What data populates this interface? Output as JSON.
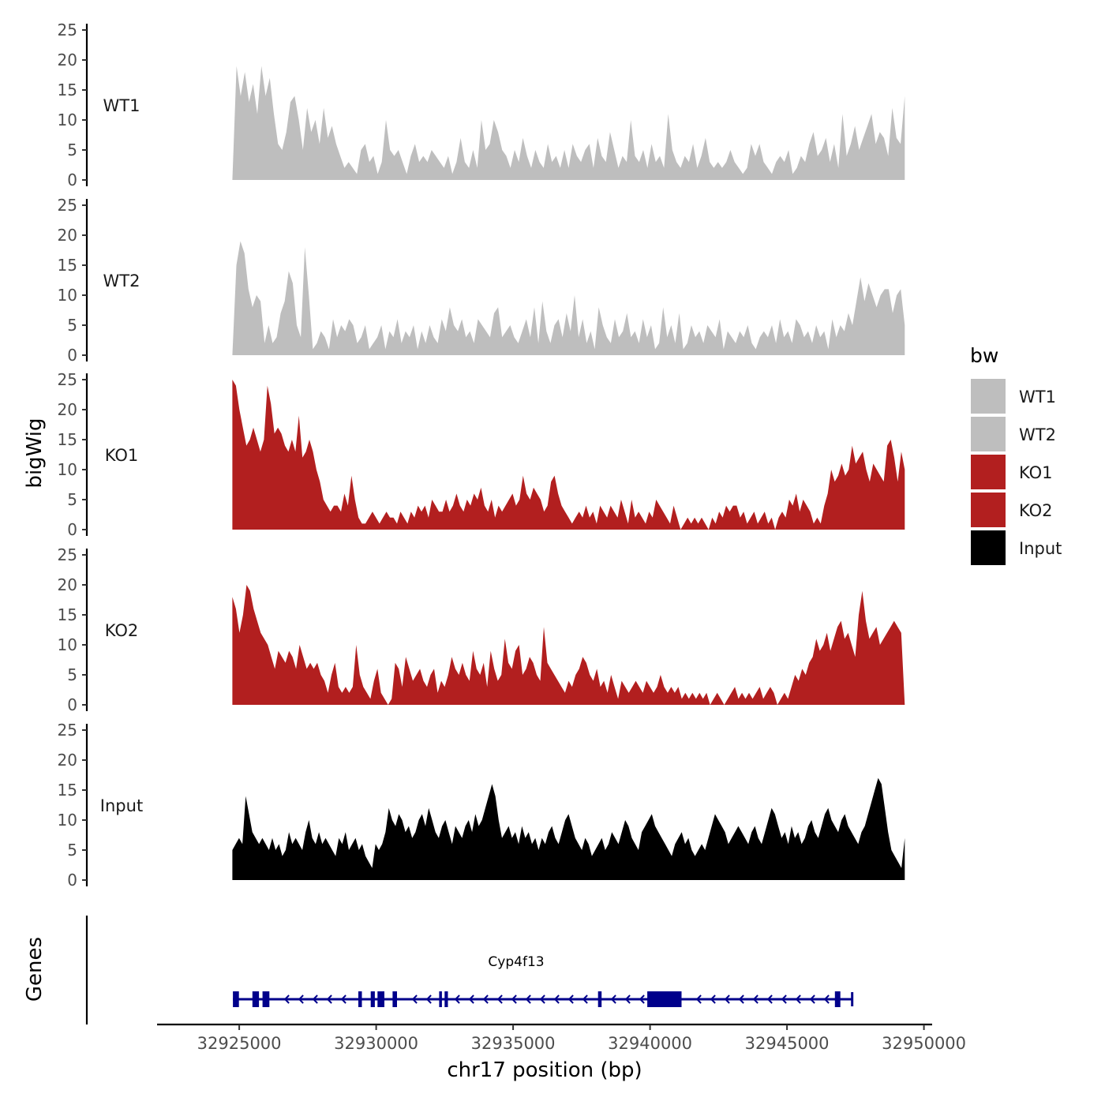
{
  "chart_data": {
    "type": "area",
    "ylabel": "bigWig",
    "ylim": [
      0,
      25
    ],
    "yticks": [
      "0",
      "5",
      "10",
      "15",
      "20",
      "25"
    ],
    "xlabel": "chr17 position (bp)",
    "xlim": [
      32922000,
      32950300
    ],
    "xticks": [
      {
        "value": 32925000,
        "label": "32925000"
      },
      {
        "value": 32930000,
        "label": "32930000"
      },
      {
        "value": 32935000,
        "label": "32935000"
      },
      {
        "value": 32940000,
        "label": "32940000"
      },
      {
        "value": 32945000,
        "label": "32945000"
      },
      {
        "value": 32950000,
        "label": "32950000"
      }
    ],
    "x_start": 32924750,
    "x_end": 32949300,
    "legend": {
      "title": "bw",
      "position": "right",
      "entries": [
        {
          "label": "WT1",
          "color": "#bebebe"
        },
        {
          "label": "WT2",
          "color": "#bebebe"
        },
        {
          "label": "KO1",
          "color": "#b21f1f"
        },
        {
          "label": "KO2",
          "color": "#b21f1f"
        },
        {
          "label": "Input",
          "color": "#000000"
        }
      ]
    },
    "series": [
      {
        "name": "WT1",
        "color": "#bebebe",
        "values": [
          0,
          19,
          14,
          18,
          13,
          16,
          11,
          19,
          14,
          17,
          11,
          6,
          5,
          8,
          13,
          14,
          10,
          5,
          12,
          8,
          10,
          6,
          12,
          7,
          9,
          6,
          4,
          2,
          3,
          2,
          1,
          5,
          6,
          3,
          4,
          1,
          3,
          10,
          5,
          4,
          5,
          3,
          1,
          4,
          6,
          3,
          4,
          3,
          5,
          4,
          3,
          2,
          4,
          1,
          3,
          7,
          3,
          2,
          5,
          2,
          10,
          5,
          6,
          10,
          8,
          5,
          4,
          2,
          5,
          3,
          7,
          4,
          2,
          5,
          3,
          2,
          6,
          3,
          4,
          2,
          5,
          2,
          6,
          4,
          3,
          5,
          6,
          2,
          7,
          4,
          3,
          8,
          5,
          2,
          4,
          3,
          10,
          4,
          3,
          5,
          2,
          6,
          3,
          4,
          2,
          11,
          5,
          3,
          2,
          4,
          3,
          6,
          2,
          4,
          7,
          3,
          2,
          3,
          2,
          3,
          5,
          3,
          2,
          1,
          2,
          6,
          4,
          6,
          3,
          2,
          1,
          3,
          4,
          3,
          5,
          1,
          2,
          4,
          3,
          6,
          8,
          4,
          5,
          7,
          3,
          6,
          2,
          11,
          4,
          6,
          9,
          5,
          7,
          9,
          11,
          6,
          8,
          7,
          4,
          12,
          7,
          6,
          14
        ]
      },
      {
        "name": "WT2",
        "color": "#bebebe",
        "values": [
          0,
          15,
          19,
          17,
          11,
          8,
          10,
          9,
          2,
          5,
          2,
          3,
          7,
          9,
          14,
          12,
          5,
          3,
          18,
          10,
          1,
          2,
          4,
          3,
          1,
          6,
          3,
          5,
          4,
          6,
          5,
          2,
          3,
          5,
          1,
          2,
          3,
          5,
          1,
          4,
          3,
          6,
          2,
          4,
          3,
          5,
          1,
          4,
          2,
          5,
          3,
          2,
          6,
          4,
          8,
          5,
          4,
          6,
          3,
          4,
          2,
          6,
          5,
          4,
          3,
          7,
          8,
          3,
          4,
          5,
          3,
          2,
          4,
          6,
          3,
          8,
          2,
          9,
          4,
          2,
          5,
          6,
          3,
          7,
          4,
          10,
          3,
          6,
          2,
          4,
          1,
          8,
          5,
          3,
          2,
          6,
          3,
          4,
          7,
          3,
          4,
          2,
          6,
          3,
          5,
          1,
          2,
          8,
          3,
          5,
          2,
          7,
          1,
          2,
          5,
          3,
          4,
          2,
          5,
          4,
          3,
          6,
          1,
          4,
          3,
          2,
          4,
          3,
          5,
          2,
          1,
          3,
          4,
          3,
          5,
          2,
          6,
          3,
          4,
          2,
          6,
          5,
          3,
          4,
          2,
          5,
          3,
          4,
          1,
          6,
          3,
          5,
          4,
          7,
          5,
          9,
          13,
          9,
          12,
          10,
          8,
          10,
          11,
          11,
          7,
          10,
          11,
          5
        ]
      },
      {
        "name": "KO1",
        "color": "#b21f1f",
        "values": [
          25,
          24,
          20,
          17,
          14,
          15,
          17,
          15,
          13,
          15,
          24,
          21,
          16,
          17,
          16,
          14,
          13,
          15,
          13,
          19,
          12,
          13,
          15,
          13,
          10,
          8,
          5,
          4,
          3,
          4,
          4,
          3,
          6,
          4,
          9,
          5,
          2,
          1,
          1,
          2,
          3,
          2,
          1,
          2,
          3,
          2,
          2,
          1,
          3,
          2,
          1,
          3,
          2,
          4,
          3,
          4,
          2,
          5,
          4,
          3,
          3,
          5,
          3,
          4,
          6,
          4,
          3,
          5,
          4,
          6,
          5,
          7,
          4,
          3,
          5,
          2,
          4,
          3,
          4,
          5,
          6,
          4,
          5,
          9,
          6,
          5,
          7,
          6,
          5,
          3,
          4,
          8,
          9,
          6,
          4,
          3,
          2,
          1,
          2,
          3,
          2,
          4,
          2,
          3,
          1,
          4,
          3,
          2,
          4,
          3,
          2,
          5,
          3,
          1,
          5,
          2,
          3,
          2,
          1,
          3,
          2,
          5,
          4,
          3,
          2,
          1,
          4,
          2,
          0,
          1,
          2,
          1,
          2,
          1,
          2,
          1,
          0,
          2,
          1,
          3,
          2,
          4,
          3,
          4,
          4,
          2,
          3,
          1,
          2,
          3,
          1,
          2,
          3,
          1,
          2,
          0,
          2,
          3,
          2,
          5,
          4,
          6,
          3,
          5,
          4,
          3,
          1,
          2,
          1,
          4,
          6,
          10,
          8,
          9,
          11,
          9,
          10,
          14,
          11,
          12,
          13,
          10,
          8,
          11,
          10,
          9,
          8,
          14,
          15,
          12,
          8,
          13,
          10
        ]
      },
      {
        "name": "KO2",
        "color": "#b21f1f",
        "values": [
          18,
          16,
          12,
          15,
          20,
          19,
          16,
          14,
          12,
          11,
          10,
          8,
          6,
          9,
          8,
          7,
          9,
          8,
          6,
          10,
          8,
          6,
          7,
          6,
          7,
          5,
          4,
          2,
          5,
          7,
          3,
          2,
          3,
          2,
          3,
          10,
          5,
          3,
          2,
          1,
          4,
          6,
          2,
          1,
          0,
          1,
          7,
          6,
          3,
          8,
          6,
          4,
          5,
          6,
          4,
          3,
          5,
          6,
          2,
          4,
          3,
          5,
          8,
          6,
          5,
          7,
          5,
          4,
          9,
          6,
          5,
          7,
          3,
          9,
          6,
          4,
          5,
          11,
          7,
          6,
          9,
          10,
          5,
          6,
          8,
          7,
          5,
          4,
          13,
          7,
          6,
          5,
          4,
          3,
          2,
          4,
          3,
          5,
          6,
          8,
          7,
          5,
          4,
          6,
          3,
          4,
          2,
          5,
          3,
          1,
          4,
          3,
          2,
          3,
          4,
          3,
          2,
          4,
          3,
          2,
          3,
          5,
          3,
          2,
          3,
          2,
          3,
          1,
          2,
          1,
          2,
          1,
          2,
          1,
          2,
          0,
          1,
          2,
          1,
          0,
          1,
          2,
          3,
          1,
          2,
          1,
          2,
          1,
          2,
          3,
          1,
          2,
          3,
          2,
          0,
          1,
          2,
          1,
          3,
          5,
          4,
          6,
          5,
          7,
          8,
          11,
          9,
          10,
          12,
          9,
          11,
          13,
          14,
          11,
          12,
          10,
          8,
          15,
          19,
          14,
          11,
          12,
          13,
          10,
          11,
          12,
          13,
          14,
          13,
          12,
          0
        ]
      },
      {
        "name": "Input",
        "color": "#000000",
        "values": [
          5,
          6,
          7,
          6,
          14,
          11,
          8,
          7,
          6,
          7,
          6,
          5,
          7,
          5,
          6,
          4,
          5,
          8,
          6,
          7,
          6,
          5,
          8,
          10,
          7,
          6,
          8,
          6,
          7,
          6,
          5,
          4,
          7,
          6,
          8,
          5,
          6,
          7,
          5,
          6,
          4,
          3,
          2,
          6,
          5,
          6,
          8,
          12,
          10,
          9,
          11,
          10,
          8,
          9,
          7,
          8,
          10,
          11,
          9,
          12,
          10,
          8,
          7,
          9,
          10,
          8,
          6,
          9,
          8,
          7,
          9,
          10,
          8,
          11,
          9,
          10,
          12,
          14,
          16,
          14,
          10,
          7,
          8,
          9,
          7,
          8,
          6,
          9,
          7,
          8,
          6,
          7,
          5,
          7,
          6,
          8,
          9,
          7,
          6,
          8,
          10,
          11,
          9,
          7,
          6,
          5,
          7,
          6,
          4,
          5,
          6,
          7,
          5,
          6,
          8,
          7,
          6,
          8,
          10,
          9,
          7,
          6,
          5,
          8,
          9,
          10,
          11,
          9,
          8,
          7,
          6,
          5,
          4,
          6,
          7,
          8,
          6,
          7,
          5,
          4,
          5,
          6,
          5,
          7,
          9,
          11,
          10,
          9,
          8,
          6,
          7,
          8,
          9,
          8,
          7,
          6,
          8,
          9,
          7,
          6,
          8,
          10,
          12,
          11,
          9,
          7,
          8,
          6,
          9,
          7,
          8,
          6,
          7,
          9,
          10,
          8,
          7,
          9,
          11,
          12,
          10,
          9,
          8,
          10,
          11,
          9,
          8,
          7,
          6,
          8,
          9,
          11,
          13,
          15,
          17,
          16,
          12,
          8,
          5,
          4,
          3,
          2,
          7
        ]
      }
    ],
    "genes": {
      "track_label": "Genes",
      "gene_name": "Cyp4f13",
      "color": "#00008b",
      "strand": "-",
      "start": 32924770,
      "end": 32947380,
      "exons": [
        [
          32924770,
          32924990
        ],
        [
          32925480,
          32925720
        ],
        [
          32925850,
          32926100
        ],
        [
          32929350,
          32929480
        ],
        [
          32929800,
          32929950
        ],
        [
          32930050,
          32930300
        ],
        [
          32930600,
          32930760
        ],
        [
          32932300,
          32932400
        ],
        [
          32932500,
          32932620
        ],
        [
          32938100,
          32938230
        ],
        [
          32939900,
          32941150
        ],
        [
          32946750,
          32946950
        ]
      ]
    }
  }
}
